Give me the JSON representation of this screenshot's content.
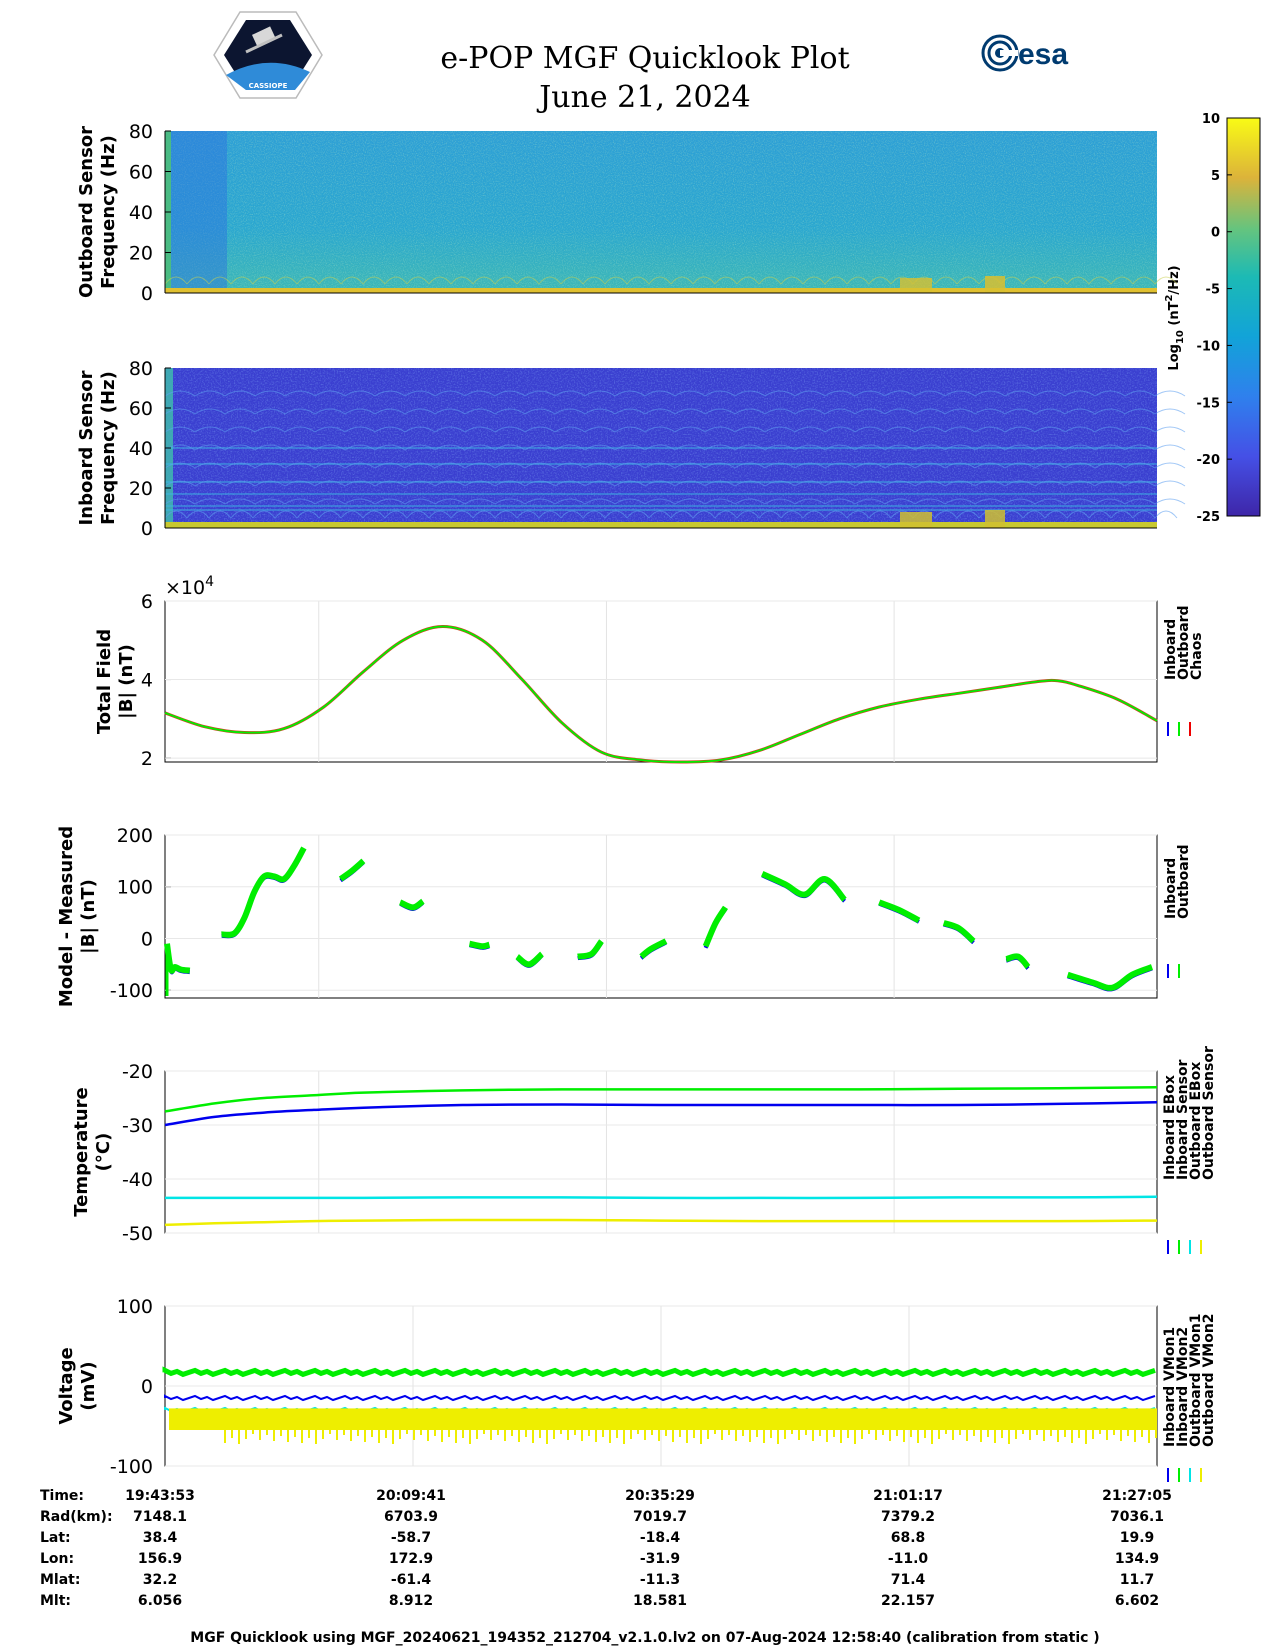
{
  "header": {
    "title": "e-POP MGF Quicklook Plot",
    "date": "June 21, 2024",
    "esa_logo_text": "esa",
    "mission_badge_text": "CASSIOPE"
  },
  "colorbar": {
    "ticks": [
      "10",
      "5",
      "0",
      "-5",
      "-10",
      "-15",
      "-20",
      "-25"
    ],
    "range": [
      -25,
      10
    ],
    "label": "Log10 (nT2/Hz)",
    "label_main": "Log",
    "label_sub": "10",
    "label_unit": "(nT",
    "label_sup": "2",
    "label_tail": "/Hz)"
  },
  "chart_data": [
    {
      "type": "heatmap",
      "name": "outboard-spectrogram",
      "ylabel": [
        "Outboard Sensor",
        "Frequency (Hz)"
      ],
      "yticks": [
        "80",
        "60",
        "40",
        "20",
        "0"
      ],
      "ylim": [
        0,
        80
      ],
      "background_log10": -7,
      "colors": {
        "base": "#2a9fd2",
        "mid": "#4fbcc2",
        "hot": "#c8c830",
        "low": "#2b6fe0"
      }
    },
    {
      "type": "heatmap",
      "name": "inboard-spectrogram",
      "ylabel": [
        "Inboard Sensor",
        "Frequency (Hz)"
      ],
      "yticks": [
        "80",
        "60",
        "40",
        "20",
        "0"
      ],
      "ylim": [
        0,
        80
      ],
      "background_log10": -20,
      "colors": {
        "base": "#3a3fd0",
        "line": "#3db6e3",
        "hot": "#c8c830"
      }
    },
    {
      "type": "line",
      "name": "total-field",
      "ylabel": [
        "Total Field",
        "|B| (nT)"
      ],
      "yticks": [
        "6",
        "4",
        "2"
      ],
      "ylim": [
        1.9,
        6
      ],
      "exponent_main": "×10",
      "exponent_sup": "4",
      "legend": [
        "Inboard",
        "Outboard",
        "Chaos"
      ],
      "legend_colors": [
        "#0000ee",
        "#00ee00",
        "#ee0000"
      ],
      "x": [
        0,
        0.04,
        0.08,
        0.12,
        0.16,
        0.2,
        0.24,
        0.28,
        0.32,
        0.36,
        0.4,
        0.44,
        0.48,
        0.52,
        0.56,
        0.6,
        0.64,
        0.68,
        0.72,
        0.76,
        0.8,
        0.84,
        0.88,
        0.9,
        0.92,
        0.96,
        1.0
      ],
      "series": [
        {
          "name": "Chaos",
          "color": "#d04020",
          "values": [
            3.15,
            2.8,
            2.65,
            2.75,
            3.3,
            4.2,
            5.0,
            5.35,
            5.0,
            4.0,
            2.9,
            2.15,
            1.95,
            1.9,
            1.95,
            2.2,
            2.6,
            3.0,
            3.3,
            3.5,
            3.65,
            3.8,
            3.95,
            3.97,
            3.85,
            3.5,
            2.95
          ]
        },
        {
          "name": "Outboard",
          "color": "#00ee00",
          "values": [
            3.15,
            2.8,
            2.65,
            2.75,
            3.3,
            4.2,
            5.0,
            5.35,
            5.0,
            4.0,
            2.9,
            2.15,
            1.95,
            1.9,
            1.95,
            2.2,
            2.6,
            3.0,
            3.3,
            3.5,
            3.65,
            3.8,
            3.95,
            3.97,
            3.85,
            3.5,
            2.95
          ]
        }
      ]
    },
    {
      "type": "scatter",
      "name": "model-minus-measured",
      "ylabel": [
        "Model - Measured",
        "|B| (nT)"
      ],
      "yticks": [
        "200",
        "100",
        "0",
        "-100"
      ],
      "ylim": [
        -115,
        200
      ],
      "legend": [
        "Inboard",
        "Outboard"
      ],
      "legend_colors": [
        "#0000ee",
        "#00ee00"
      ],
      "segments": [
        {
          "x": [
            0.002,
            0.006,
            0.01,
            0.016,
            0.025
          ],
          "y": [
            -10,
            -60,
            -55,
            -60,
            -62
          ]
        },
        {
          "x": [
            0.057,
            0.07,
            0.08,
            0.09,
            0.1,
            0.11,
            0.12,
            0.13,
            0.14
          ],
          "y": [
            8,
            10,
            40,
            90,
            120,
            120,
            115,
            140,
            175
          ]
        },
        {
          "x": [
            0.177,
            0.188,
            0.2
          ],
          "y": [
            115,
            130,
            150
          ]
        },
        {
          "x": [
            0.237,
            0.25,
            0.26
          ],
          "y": [
            70,
            60,
            72
          ]
        },
        {
          "x": [
            0.307,
            0.32,
            0.327
          ],
          "y": [
            -10,
            -15,
            -12
          ]
        },
        {
          "x": [
            0.355,
            0.367,
            0.38
          ],
          "y": [
            -35,
            -50,
            -30
          ]
        },
        {
          "x": [
            0.416,
            0.43,
            0.44
          ],
          "y": [
            -35,
            -30,
            -5
          ]
        },
        {
          "x": [
            0.48,
            0.49,
            0.505
          ],
          "y": [
            -35,
            -20,
            -5
          ]
        },
        {
          "x": [
            0.545,
            0.555,
            0.565
          ],
          "y": [
            -15,
            30,
            60
          ]
        },
        {
          "x": [
            0.602,
            0.625,
            0.645,
            0.665,
            0.685
          ],
          "y": [
            125,
            105,
            85,
            115,
            75
          ]
        },
        {
          "x": [
            0.72,
            0.74,
            0.76
          ],
          "y": [
            70,
            55,
            35
          ]
        },
        {
          "x": [
            0.785,
            0.8,
            0.815
          ],
          "y": [
            30,
            20,
            -5
          ]
        },
        {
          "x": [
            0.848,
            0.86,
            0.87
          ],
          "y": [
            -40,
            -35,
            -55
          ]
        },
        {
          "x": [
            0.91,
            0.935,
            0.955,
            0.975,
            0.995
          ],
          "y": [
            -70,
            -85,
            -95,
            -70,
            -55
          ]
        }
      ]
    },
    {
      "type": "line",
      "name": "temperature",
      "ylabel": [
        "Temperature",
        "(°C)"
      ],
      "yticks": [
        "-20",
        "-30",
        "-40",
        "-50"
      ],
      "ylim": [
        -50,
        -20
      ],
      "legend": [
        "Inboard EBox",
        "Inboard Sensor",
        "Outboard EBox",
        "Outboard Sensor"
      ],
      "legend_colors": [
        "#0000ee",
        "#00ee00",
        "#00e5e5",
        "#eeee00"
      ],
      "x": [
        0,
        0.05,
        0.1,
        0.15,
        0.2,
        0.3,
        0.4,
        0.5,
        0.6,
        0.7,
        0.8,
        0.9,
        1.0
      ],
      "series": [
        {
          "name": "Inboard Sensor",
          "color": "#00ee00",
          "values": [
            -27.5,
            -26.0,
            -25.0,
            -24.5,
            -24.0,
            -23.6,
            -23.4,
            -23.4,
            -23.4,
            -23.4,
            -23.3,
            -23.2,
            -23.0
          ]
        },
        {
          "name": "Inboard EBox",
          "color": "#0000ee",
          "values": [
            -30.0,
            -28.5,
            -27.7,
            -27.2,
            -26.8,
            -26.3,
            -26.2,
            -26.3,
            -26.3,
            -26.3,
            -26.3,
            -26.1,
            -25.8
          ]
        },
        {
          "name": "Outboard EBox",
          "color": "#00e5e5",
          "values": [
            -43.5,
            -43.5,
            -43.5,
            -43.5,
            -43.5,
            -43.4,
            -43.4,
            -43.5,
            -43.5,
            -43.5,
            -43.4,
            -43.4,
            -43.3
          ]
        },
        {
          "name": "Outboard Sensor",
          "color": "#eeee00",
          "values": [
            -48.5,
            -48.2,
            -48.0,
            -47.8,
            -47.7,
            -47.6,
            -47.6,
            -47.7,
            -47.8,
            -47.8,
            -47.8,
            -47.8,
            -47.7
          ]
        }
      ]
    },
    {
      "type": "line",
      "name": "voltage",
      "ylabel": [
        "Voltage",
        "(mV)"
      ],
      "yticks": [
        "100",
        "0",
        "-100"
      ],
      "ylim": [
        -100,
        100
      ],
      "legend": [
        "Inboard VMon1",
        "Inboard VMon2",
        "Outboard VMon1",
        "Outboard VMon2"
      ],
      "legend_colors": [
        "#0000ee",
        "#00ee00",
        "#00e5e5",
        "#eeee00"
      ],
      "series": [
        {
          "name": "Inboard VMon2",
          "color": "#00ee00",
          "level": 17
        },
        {
          "name": "Inboard VMon1",
          "color": "#0000ee",
          "level": -15
        },
        {
          "name": "Outboard VMon1",
          "color": "#00e5e5",
          "level": -30
        },
        {
          "name": "Outboard VMon2",
          "color": "#eeee00",
          "range": [
            -55,
            -28
          ]
        }
      ]
    }
  ],
  "orbit_table": {
    "labels": [
      "Time:",
      "Rad(km):",
      "Lat:",
      "Lon:",
      "Mlat:",
      "Mlt:"
    ],
    "columns": [
      [
        "19:43:53",
        "7148.1",
        "38.4",
        "156.9",
        "32.2",
        "6.056"
      ],
      [
        "20:09:41",
        "6703.9",
        "-58.7",
        "172.9",
        "-61.4",
        "8.912"
      ],
      [
        "20:35:29",
        "7019.7",
        "-18.4",
        "-31.9",
        "-11.3",
        "18.581"
      ],
      [
        "21:01:17",
        "7379.2",
        "68.8",
        "-11.0",
        "71.4",
        "22.157"
      ],
      [
        "21:27:05",
        "7036.1",
        "19.9",
        "134.9",
        "11.7",
        "6.602"
      ]
    ]
  },
  "footer": "MGF Quicklook using MGF_20240621_194352_212704_v2.1.0.lv2 on 07-Aug-2024 12:58:40 (calibration from static )"
}
